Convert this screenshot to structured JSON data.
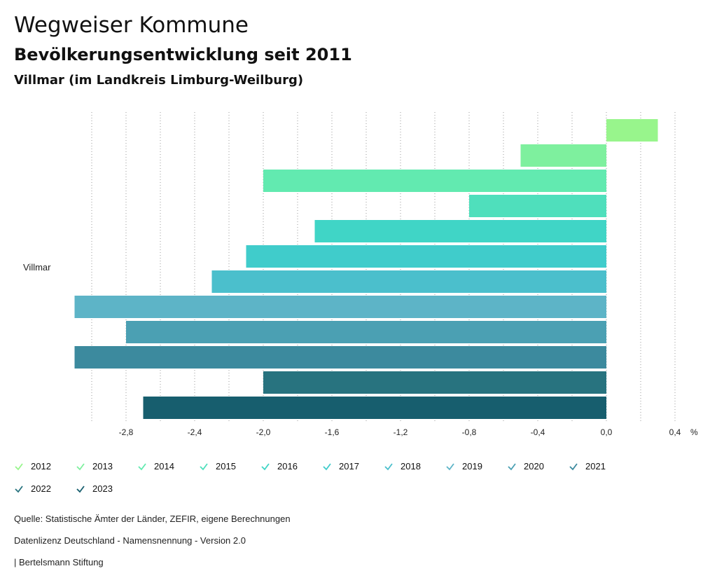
{
  "header": {
    "title": "Wegweiser Kommune",
    "subtitle": "Bevölkerungsentwicklung seit 2011",
    "region": "Villmar (im Landkreis Limburg-Weilburg)"
  },
  "chart_data": {
    "type": "bar",
    "orientation": "horizontal",
    "categories": [
      "Villmar"
    ],
    "series": [
      {
        "name": "2012",
        "value": 0.3,
        "color": "#98f58c"
      },
      {
        "name": "2013",
        "value": -0.5,
        "color": "#7ef09e"
      },
      {
        "name": "2014",
        "value": -2.0,
        "color": "#62eab0"
      },
      {
        "name": "2015",
        "value": -0.8,
        "color": "#4fdfbc"
      },
      {
        "name": "2016",
        "value": -1.7,
        "color": "#40d5c6"
      },
      {
        "name": "2017",
        "value": -2.1,
        "color": "#40cccb"
      },
      {
        "name": "2018",
        "value": -2.3,
        "color": "#4bbfcc"
      },
      {
        "name": "2019",
        "value": -3.1,
        "color": "#5db4c7"
      },
      {
        "name": "2020",
        "value": -2.8,
        "color": "#4ba0b3"
      },
      {
        "name": "2021",
        "value": -3.1,
        "color": "#3c8a9e"
      },
      {
        "name": "2022",
        "value": -2.0,
        "color": "#28737f"
      },
      {
        "name": "2023",
        "value": -2.7,
        "color": "#175e6e"
      }
    ],
    "xlim": [
      -3.0,
      0.4
    ],
    "xticks": [
      -2.8,
      -2.4,
      -2.0,
      -1.6,
      -1.2,
      -0.8,
      -0.4,
      0.0,
      0.4
    ],
    "xtick_labels": [
      "-2,8",
      "-2,4",
      "-2,0",
      "-1,6",
      "-1,2",
      "-0,8",
      "-0,4",
      "0,0",
      "0,4"
    ],
    "unit": "%",
    "grid": true,
    "legend_position": "bottom"
  },
  "footer": {
    "source": "Quelle: Statistische Ämter der Länder, ZEFIR, eigene Berechnungen",
    "license": "Datenlizenz Deutschland - Namensnennung - Version 2.0",
    "publisher": "| Bertelsmann Stiftung"
  }
}
